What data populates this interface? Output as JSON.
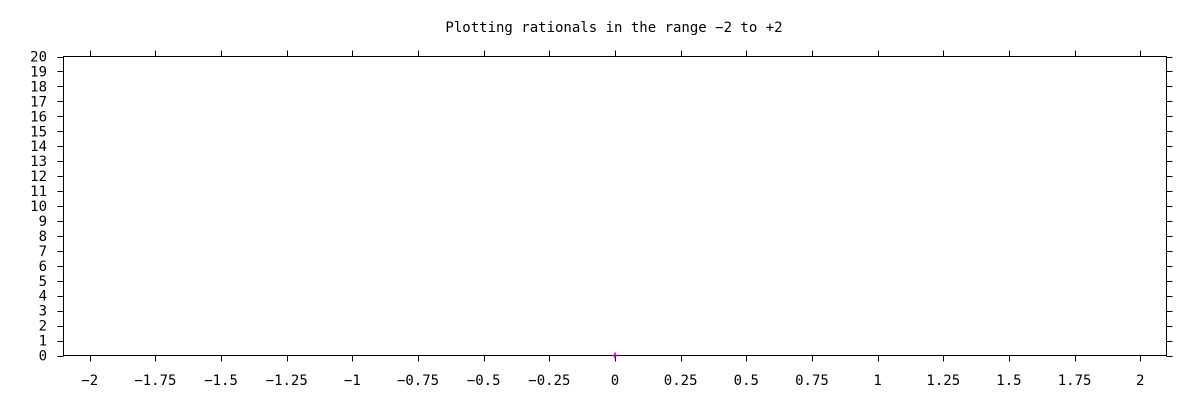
{
  "chart_data": {
    "type": "scatter",
    "title": "Plotting rationals in the range −2 to +2",
    "xlabel": "",
    "ylabel": "",
    "xlim": [
      -2.1,
      2.1
    ],
    "ylim": [
      0,
      20
    ],
    "x_ticks": [
      -2,
      -1.75,
      -1.5,
      -1.25,
      -1,
      -0.75,
      -0.5,
      -0.25,
      0,
      0.25,
      0.5,
      0.75,
      1,
      1.25,
      1.5,
      1.75,
      2
    ],
    "x_tick_labels": [
      "−2",
      "−1.75",
      "−1.5",
      "−1.25",
      "−1",
      "−0.75",
      "−0.5",
      "−0.25",
      "0",
      "0.25",
      "0.5",
      "0.75",
      "1",
      "1.25",
      "1.5",
      "1.75",
      "2"
    ],
    "y_ticks": [
      0,
      1,
      2,
      3,
      4,
      5,
      6,
      7,
      8,
      9,
      10,
      11,
      12,
      13,
      14,
      15,
      16,
      17,
      18,
      19,
      20
    ],
    "y_tick_labels": [
      "0",
      "1",
      "2",
      "3",
      "4",
      "5",
      "6",
      "7",
      "8",
      "9",
      "10",
      "11",
      "12",
      "13",
      "14",
      "15",
      "16",
      "17",
      "18",
      "19",
      "20"
    ],
    "grid": false,
    "series": [
      {
        "color": "#9400d3",
        "marker": "plus",
        "points": [
          {
            "x": 0,
            "y": 0
          }
        ]
      }
    ]
  }
}
